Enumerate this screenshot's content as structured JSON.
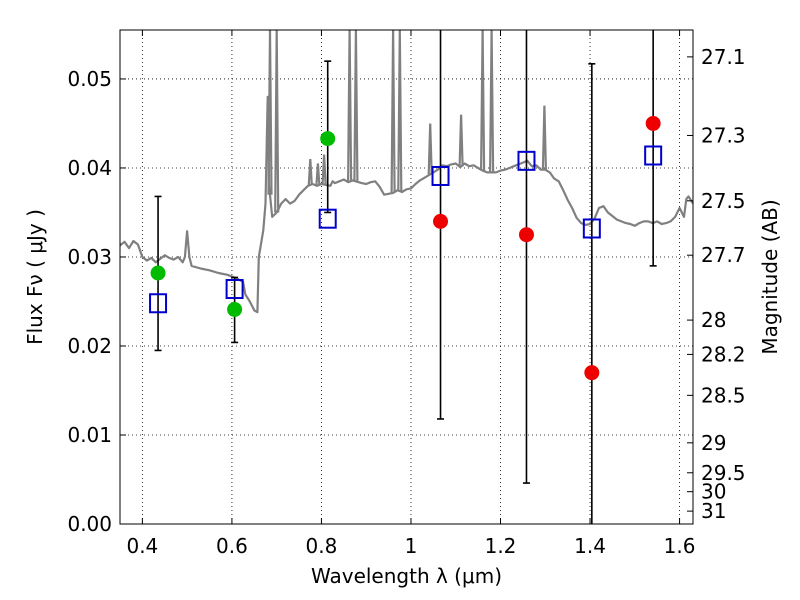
{
  "chart_data": {
    "type": "scatter",
    "xlabel": "Wavelength  λ (μm)",
    "ylabel": "Flux  Fν  ( μJy )",
    "ylabel_right": "Magnitude (AB)",
    "xlim": [
      0.35,
      1.63
    ],
    "ylim": [
      0.0,
      0.0555
    ],
    "x_ticks": [
      {
        "value": 0.4,
        "label": "0.4"
      },
      {
        "value": 0.6,
        "label": "0.6"
      },
      {
        "value": 0.8,
        "label": "0.8"
      },
      {
        "value": 1.0,
        "label": "1"
      },
      {
        "value": 1.2,
        "label": "1.2"
      },
      {
        "value": 1.4,
        "label": "1.4"
      },
      {
        "value": 1.6,
        "label": "1.6"
      }
    ],
    "y_ticks": [
      {
        "value": 0.0,
        "label": "0.00"
      },
      {
        "value": 0.01,
        "label": "0.01"
      },
      {
        "value": 0.02,
        "label": "0.02"
      },
      {
        "value": 0.03,
        "label": "0.03"
      },
      {
        "value": 0.04,
        "label": "0.04"
      },
      {
        "value": 0.05,
        "label": "0.05"
      }
    ],
    "mag_ticks": [
      "27.1",
      "27.3",
      "27.5",
      "27.7",
      "28",
      "28.2",
      "28.5",
      "29",
      "29.5",
      "30",
      "31"
    ],
    "grid": true,
    "colors": {
      "model_spectrum": "#808080",
      "model_points": "#0000cc",
      "optical_detections": "#00bb00",
      "nir_detections": "#ee0000",
      "error_bars": "#000000"
    },
    "series": [
      {
        "marker": "open-square",
        "points": [
          {
            "x": 0.435,
            "y": 0.0248
          },
          {
            "x": 0.606,
            "y": 0.0264
          },
          {
            "x": 0.814,
            "y": 0.0343
          },
          {
            "x": 1.066,
            "y": 0.0391
          },
          {
            "x": 1.258,
            "y": 0.0408
          },
          {
            "x": 1.404,
            "y": 0.0332
          },
          {
            "x": 1.541,
            "y": 0.0414
          }
        ]
      },
      {
        "marker": "filled-circle",
        "points": [
          {
            "x": 0.435,
            "y": 0.0282
          },
          {
            "x": 0.606,
            "y": 0.0241
          },
          {
            "x": 0.814,
            "y": 0.0433
          }
        ]
      },
      {
        "marker": "filled-circle",
        "points": [
          {
            "x": 1.066,
            "y": 0.034
          },
          {
            "x": 1.258,
            "y": 0.0325
          },
          {
            "x": 1.404,
            "y": 0.017
          },
          {
            "x": 1.541,
            "y": 0.045
          }
        ]
      }
    ],
    "error_bars": [
      {
        "x": 0.435,
        "low": 0.0195,
        "high": 0.0368
      },
      {
        "x": 0.606,
        "low": 0.0204,
        "high": 0.0277
      },
      {
        "x": 0.814,
        "low": 0.035,
        "high": 0.052
      },
      {
        "x": 1.066,
        "low": 0.0118,
        "high": 0.058
      },
      {
        "x": 1.258,
        "low": 0.0046,
        "high": 0.058
      },
      {
        "x": 1.404,
        "low": 0.0,
        "high": 0.0517
      },
      {
        "x": 1.541,
        "low": 0.029,
        "high": 0.058
      }
    ],
    "spectrum": [
      [
        0.35,
        0.0313
      ],
      [
        0.36,
        0.0317
      ],
      [
        0.37,
        0.031
      ],
      [
        0.38,
        0.0318
      ],
      [
        0.39,
        0.0314
      ],
      [
        0.4,
        0.03
      ],
      [
        0.41,
        0.0296
      ],
      [
        0.42,
        0.0299
      ],
      [
        0.43,
        0.0294
      ],
      [
        0.44,
        0.0298
      ],
      [
        0.45,
        0.0302
      ],
      [
        0.46,
        0.0299
      ],
      [
        0.47,
        0.0297
      ],
      [
        0.48,
        0.03
      ],
      [
        0.49,
        0.0294
      ],
      [
        0.495,
        0.03
      ],
      [
        0.5,
        0.0329
      ],
      [
        0.505,
        0.03
      ],
      [
        0.51,
        0.029
      ],
      [
        0.53,
        0.0287
      ],
      [
        0.55,
        0.0285
      ],
      [
        0.57,
        0.0282
      ],
      [
        0.59,
        0.028
      ],
      [
        0.61,
        0.0276
      ],
      [
        0.625,
        0.0272
      ],
      [
        0.63,
        0.0258
      ],
      [
        0.64,
        0.025
      ],
      [
        0.65,
        0.024
      ],
      [
        0.657,
        0.0238
      ],
      [
        0.66,
        0.03
      ],
      [
        0.67,
        0.033
      ],
      [
        0.675,
        0.036
      ],
      [
        0.68,
        0.048
      ],
      [
        0.683,
        0.038
      ],
      [
        0.69,
        0.0345
      ],
      [
        0.7,
        0.035
      ],
      [
        0.71,
        0.036
      ],
      [
        0.72,
        0.0365
      ],
      [
        0.73,
        0.036
      ],
      [
        0.74,
        0.0363
      ],
      [
        0.75,
        0.037
      ],
      [
        0.76,
        0.0375
      ],
      [
        0.77,
        0.038
      ],
      [
        0.78,
        0.0382
      ],
      [
        0.79,
        0.038
      ],
      [
        0.8,
        0.0382
      ],
      [
        0.82,
        0.038
      ],
      [
        0.825,
        0.0385
      ],
      [
        0.83,
        0.0383
      ],
      [
        0.84,
        0.0385
      ],
      [
        0.85,
        0.0387
      ],
      [
        0.86,
        0.0384
      ],
      [
        0.87,
        0.0386
      ],
      [
        0.89,
        0.0383
      ],
      [
        0.9,
        0.0382
      ],
      [
        0.91,
        0.0384
      ],
      [
        0.92,
        0.0385
      ],
      [
        0.93,
        0.0379
      ],
      [
        0.94,
        0.037
      ],
      [
        0.95,
        0.0371
      ],
      [
        0.96,
        0.0372
      ],
      [
        0.97,
        0.0375
      ],
      [
        0.98,
        0.0373
      ],
      [
        0.99,
        0.0376
      ],
      [
        1.0,
        0.0377
      ],
      [
        1.01,
        0.0382
      ],
      [
        1.02,
        0.0386
      ],
      [
        1.03,
        0.0389
      ],
      [
        1.04,
        0.0392
      ],
      [
        1.05,
        0.0395
      ],
      [
        1.06,
        0.0398
      ],
      [
        1.07,
        0.0403
      ],
      [
        1.08,
        0.0402
      ],
      [
        1.09,
        0.0404
      ],
      [
        1.1,
        0.0405
      ],
      [
        1.11,
        0.0401
      ],
      [
        1.12,
        0.0405
      ],
      [
        1.13,
        0.0402
      ],
      [
        1.14,
        0.0403
      ],
      [
        1.15,
        0.04
      ],
      [
        1.16,
        0.0397
      ],
      [
        1.17,
        0.0395
      ],
      [
        1.18,
        0.0395
      ],
      [
        1.19,
        0.0395
      ],
      [
        1.2,
        0.0397
      ],
      [
        1.21,
        0.0398
      ],
      [
        1.22,
        0.04
      ],
      [
        1.23,
        0.0402
      ],
      [
        1.24,
        0.0404
      ],
      [
        1.25,
        0.0406
      ],
      [
        1.26,
        0.0408
      ],
      [
        1.27,
        0.0402
      ],
      [
        1.28,
        0.0403
      ],
      [
        1.29,
        0.0398
      ],
      [
        1.3,
        0.0398
      ],
      [
        1.31,
        0.0395
      ],
      [
        1.32,
        0.0388
      ],
      [
        1.33,
        0.0385
      ],
      [
        1.34,
        0.0375
      ],
      [
        1.35,
        0.0364
      ],
      [
        1.36,
        0.0355
      ],
      [
        1.37,
        0.0344
      ],
      [
        1.38,
        0.0338
      ],
      [
        1.39,
        0.0336
      ],
      [
        1.4,
        0.0337
      ],
      [
        1.41,
        0.0343
      ],
      [
        1.42,
        0.0355
      ],
      [
        1.43,
        0.0357
      ],
      [
        1.44,
        0.035
      ],
      [
        1.45,
        0.0346
      ],
      [
        1.46,
        0.0342
      ],
      [
        1.47,
        0.034
      ],
      [
        1.48,
        0.0338
      ],
      [
        1.49,
        0.0337
      ],
      [
        1.5,
        0.0335
      ],
      [
        1.51,
        0.0338
      ],
      [
        1.52,
        0.034
      ],
      [
        1.53,
        0.034
      ],
      [
        1.54,
        0.0338
      ],
      [
        1.55,
        0.034
      ],
      [
        1.56,
        0.0337
      ],
      [
        1.57,
        0.0338
      ],
      [
        1.58,
        0.034
      ],
      [
        1.59,
        0.0345
      ],
      [
        1.6,
        0.0355
      ],
      [
        1.61,
        0.0345
      ],
      [
        1.615,
        0.0365
      ],
      [
        1.62,
        0.0368
      ],
      [
        1.63,
        0.036
      ]
    ],
    "spectrum_peaks": [
      [
        0.685,
        0.058
      ],
      [
        0.7,
        0.058
      ],
      [
        0.775,
        0.041
      ],
      [
        0.792,
        0.0405
      ],
      [
        0.806,
        0.0415
      ],
      [
        0.863,
        0.058
      ],
      [
        0.877,
        0.058
      ],
      [
        0.96,
        0.058
      ],
      [
        0.975,
        0.058
      ],
      [
        1.043,
        0.045
      ],
      [
        1.112,
        0.046
      ],
      [
        1.16,
        0.058
      ],
      [
        1.18,
        0.058
      ],
      [
        1.298,
        0.047
      ]
    ]
  }
}
